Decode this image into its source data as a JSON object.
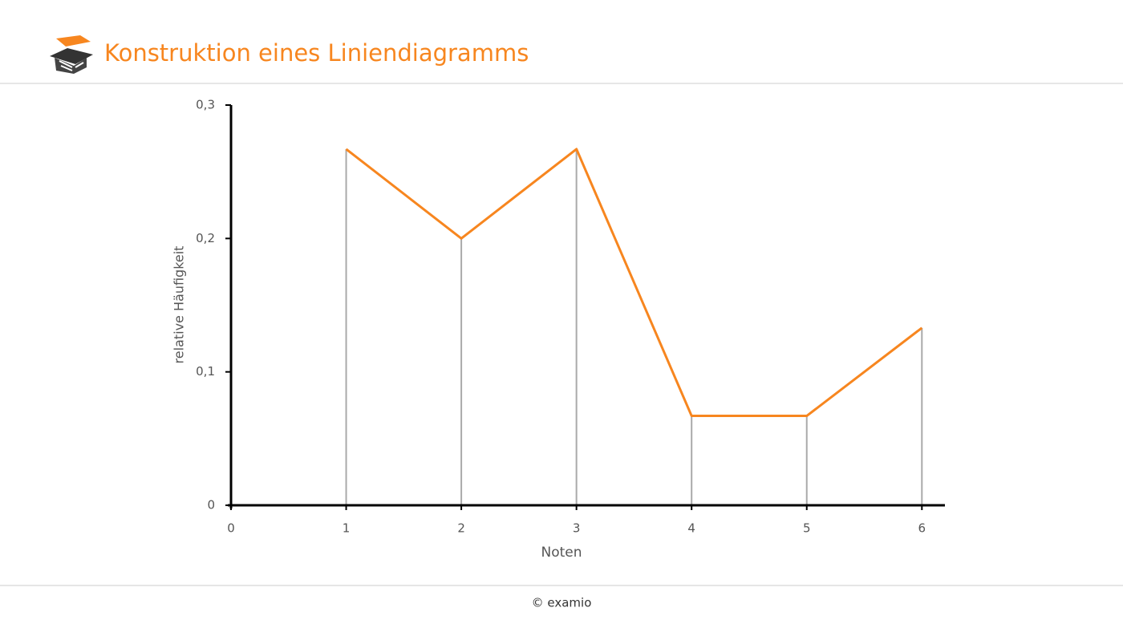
{
  "header": {
    "title": "Konstruktion eines Liniendiagramms"
  },
  "chart_data": {
    "type": "line",
    "x_label": "Noten",
    "y_label": "relative Häufigkeit",
    "x": [
      1,
      2,
      3,
      4,
      5,
      6
    ],
    "values": [
      0.267,
      0.2,
      0.267,
      0.067,
      0.067,
      0.133
    ],
    "color": "#f7861f",
    "drop_line_color": "#aaaaaa",
    "xlim": [
      0,
      6.2
    ],
    "xticks": [
      0,
      1,
      2,
      3,
      4,
      5,
      6
    ],
    "ylim": [
      0,
      0.3
    ],
    "yticks": [
      0,
      {
        "value": 0.1,
        "label": "0,1"
      },
      {
        "value": 0.2,
        "label": "0,2"
      },
      {
        "value": 0.3,
        "label": "0,3"
      }
    ],
    "drop_lines": true
  },
  "footer": {
    "text": "© examio"
  }
}
